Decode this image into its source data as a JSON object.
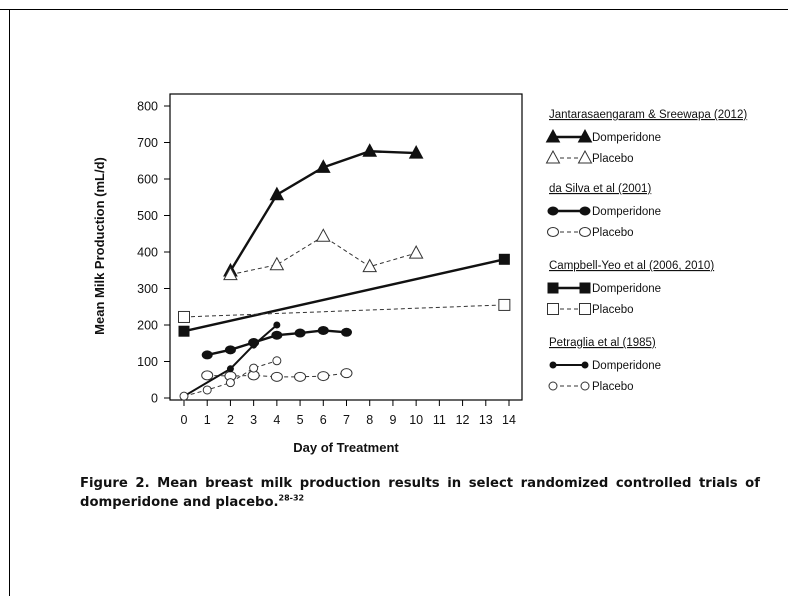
{
  "chart_data": {
    "type": "line",
    "xlabel": "Day of Treatment",
    "ylabel": "Mean Milk Production (mL/d)",
    "xlim": [
      0,
      14
    ],
    "ylim": [
      0,
      800
    ],
    "xticks": [
      "0",
      "1",
      "2",
      "3",
      "4",
      "5",
      "6",
      "7",
      "8",
      "9",
      "10",
      "11",
      "12",
      "13",
      "14"
    ],
    "yticks": [
      "0",
      "100",
      "200",
      "300",
      "400",
      "500",
      "600",
      "700",
      "800"
    ],
    "grid": false,
    "legend_position": "right",
    "studies": [
      {
        "name": "Jantarasaengaram & Sreewapa (2012)",
        "series": [
          {
            "name": "Domperidone",
            "marker": "triangle-filled",
            "line": "solid-thick",
            "x": [
              2,
              4,
              6,
              8,
              10
            ],
            "y": [
              348,
              557,
              632,
              676,
              671
            ]
          },
          {
            "name": "Placebo",
            "marker": "triangle-open",
            "line": "dashed",
            "x": [
              2,
              4,
              6,
              8,
              10
            ],
            "y": [
              338,
              365,
              443,
              360,
              397
            ]
          }
        ]
      },
      {
        "name": "da Silva et al (2001)",
        "series": [
          {
            "name": "Domperidone",
            "marker": "circle-filled",
            "line": "solid-thick",
            "x": [
              1,
              2,
              3,
              4,
              5,
              6,
              7
            ],
            "y": [
              118,
              132,
              152,
              172,
              178,
              185,
              180
            ]
          },
          {
            "name": "Placebo",
            "marker": "circle-open",
            "line": "dashed",
            "x": [
              1,
              2,
              3,
              4,
              5,
              6,
              7
            ],
            "y": [
              62,
              60,
              62,
              58,
              58,
              60,
              68
            ]
          }
        ]
      },
      {
        "name": "Campbell-Yeo et al (2006, 2010)",
        "series": [
          {
            "name": "Domperidone",
            "marker": "square-filled",
            "line": "solid-thick",
            "x": [
              0,
              13.8
            ],
            "y": [
              183,
              380
            ]
          },
          {
            "name": "Placebo",
            "marker": "square-open",
            "line": "dashed",
            "x": [
              0,
              13.8
            ],
            "y": [
              222,
              255
            ]
          }
        ]
      },
      {
        "name": "Petraglia et al (1985)",
        "series": [
          {
            "name": "Domperidone",
            "marker": "dot-filled",
            "line": "solid",
            "x": [
              0,
              2,
              3,
              4
            ],
            "y": [
              5,
              80,
              145,
              200
            ]
          },
          {
            "name": "Placebo",
            "marker": "dot-open",
            "line": "dashed",
            "x": [
              0,
              1,
              2,
              3,
              4
            ],
            "y": [
              5,
              22,
              42,
              82,
              102
            ]
          }
        ]
      }
    ]
  },
  "caption": {
    "text": "Figure 2. Mean breast milk production results in select randomized controlled trials of domperidone and placebo.",
    "superscript": "28-32"
  }
}
